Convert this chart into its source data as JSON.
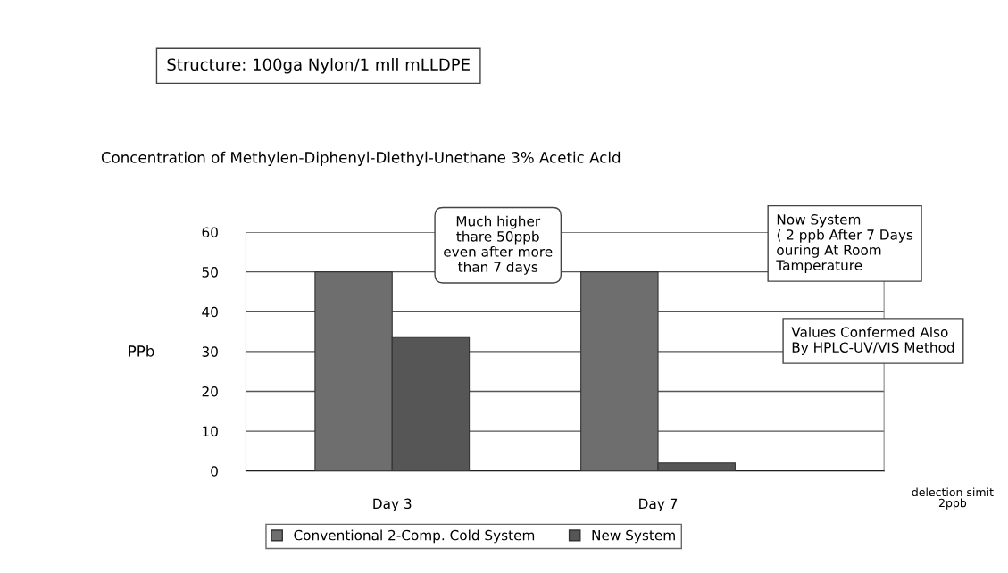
{
  "chart_data": {
    "type": "bar",
    "title": "Concentration of Methylen-Diphenyl-Dlethyl-Unethane 3% Acetic Acld",
    "ylabel": "PPb",
    "categories": [
      "Day 3",
      "Day 7"
    ],
    "series": [
      {
        "name": "Conventional 2-Comp. Cold System",
        "color": "#6e6e6e",
        "values": [
          50,
          50
        ]
      },
      {
        "name": "New System",
        "color": "#565656",
        "values": [
          33.5,
          2
        ]
      }
    ],
    "ylim": [
      0,
      60
    ],
    "yticks": [
      0,
      10,
      20,
      30,
      40,
      50,
      60
    ],
    "grid": "y",
    "legend": "bottom",
    "annotations": [
      "Structure: 100ga Nylon/1 mll mLLDPE",
      "Much higher\nthare 50ppb\neven after more\nthan 7 days",
      "Now System\n⟨ 2 ppb After 7 Days\nouring At Room\nTamperature",
      "Values Confermed Also\nBy HPLC-UV/VIS Method",
      "delection simit\n2ppb"
    ]
  }
}
